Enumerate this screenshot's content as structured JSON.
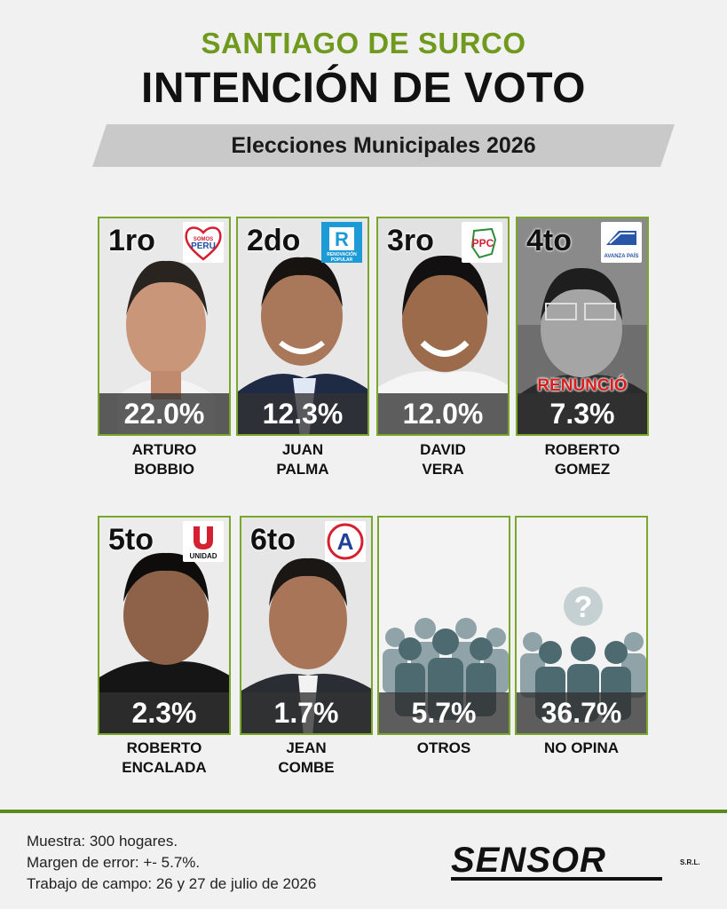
{
  "header": {
    "district": "SANTIAGO DE SURCO",
    "title": "INTENCIÓN DE VOTO",
    "banner": "Elecciones Municipales 2026"
  },
  "chart_data": {
    "type": "bar",
    "categories": [
      "ARTURO BOBBIO",
      "JUAN PALMA",
      "DAVID VERA",
      "ROBERTO GOMEZ",
      "ROBERTO ENCALADA",
      "JEAN COMBE",
      "OTROS",
      "NO OPINA"
    ],
    "values": [
      22.0,
      12.3,
      12.0,
      7.3,
      2.3,
      1.7,
      5.7,
      36.7
    ],
    "title": "INTENCIÓN DE VOTO",
    "unit": "%"
  },
  "cards": [
    {
      "rank": "1ro",
      "pct": "22.0%",
      "name1": "ARTURO",
      "name2": "BOBBIO",
      "party_icon": "somos-peru-logo",
      "note": ""
    },
    {
      "rank": "2do",
      "pct": "12.3%",
      "name1": "JUAN",
      "name2": "PALMA",
      "party_icon": "renovacion-popular-logo",
      "note": ""
    },
    {
      "rank": "3ro",
      "pct": "12.0%",
      "name1": "DAVID",
      "name2": "VERA",
      "party_icon": "ppc-logo",
      "note": ""
    },
    {
      "rank": "4to",
      "pct": "7.3%",
      "name1": "ROBERTO",
      "name2": "GOMEZ",
      "party_icon": "avanza-pais-logo",
      "note": "RENUNCIÓ"
    },
    {
      "rank": "5to",
      "pct": "2.3%",
      "name1": "ROBERTO",
      "name2": "ENCALADA",
      "party_icon": "unidad-logo",
      "note": ""
    },
    {
      "rank": "6to",
      "pct": "1.7%",
      "name1": "JEAN",
      "name2": "COMBE",
      "party_icon": "accion-popular-logo",
      "note": ""
    },
    {
      "rank": "",
      "pct": "5.7%",
      "name1": "OTROS",
      "name2": "",
      "party_icon": "crowd-icon",
      "note": ""
    },
    {
      "rank": "",
      "pct": "36.7%",
      "name1": "NO OPINA",
      "name2": "",
      "party_icon": "question-crowd-icon",
      "note": ""
    }
  ],
  "logos": {
    "somos_peru": [
      "SOMOS",
      "PERU"
    ],
    "renovacion": [
      "RENOVACIÓN",
      "POPULAR"
    ],
    "avanza": "AVANZA PAÍS",
    "unidad": "UNIDAD"
  },
  "footer": {
    "sample": "Muestra: 300 hogares.",
    "margin": "Margen de error: +- 5.7%.",
    "fieldwork": "Trabajo de campo: 26 y 27 de julio de 2026",
    "brand": "SENSOR",
    "brand_suffix": "S.R.L."
  },
  "colors": {
    "accent_green": "#7aa62a",
    "title_green": "#6f9a1e",
    "withdrawn_red": "#d62020"
  }
}
